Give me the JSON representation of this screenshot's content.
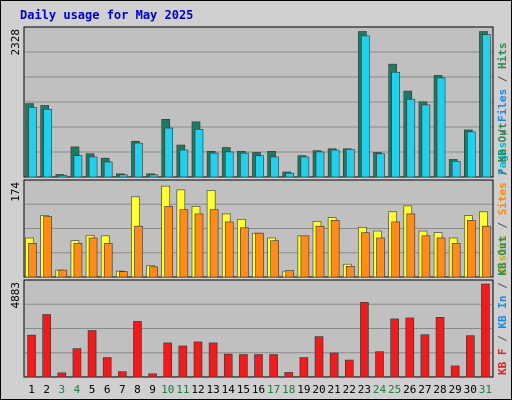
{
  "chart_data": {
    "type": "bar",
    "title": "Daily usage for May 2025",
    "categories": [
      "1",
      "2",
      "3",
      "4",
      "5",
      "6",
      "7",
      "8",
      "9",
      "10",
      "11",
      "12",
      "13",
      "14",
      "15",
      "16",
      "17",
      "18",
      "19",
      "20",
      "21",
      "22",
      "23",
      "24",
      "25",
      "26",
      "27",
      "28",
      "29",
      "30",
      "31"
    ],
    "weekend_days": [
      3,
      4,
      10,
      11,
      17,
      18,
      24,
      25,
      31
    ],
    "colors": {
      "frame_bg": "#d0d0d0",
      "panel_bg": "#c0c0c0",
      "grid": "#8a8a8a",
      "title": "#0000cc",
      "weekday_label": "#000000",
      "weekend_label": "#1a7a3a"
    },
    "panels": [
      {
        "max_label": "2328",
        "max": 2328,
        "legend": [
          {
            "text": "Pages",
            "color": "#00b7d7"
          },
          {
            "text": " / ",
            "color": "#555555"
          },
          {
            "text": "Files",
            "color": "#1e88e5"
          },
          {
            "text": " / ",
            "color": "#555555"
          },
          {
            "text": "Hits",
            "color": "#2e8b57"
          }
        ],
        "series": [
          {
            "name": "Hits",
            "color": "#1f7a63",
            "values": [
              1170,
              1140,
              40,
              480,
              370,
              300,
              50,
              570,
              50,
              920,
              510,
              880,
              410,
              470,
              410,
              390,
              410,
              80,
              340,
              420,
              450,
              450,
              2320,
              390,
              1800,
              1370,
              1200,
              1620,
              280,
              750,
              2320
            ]
          },
          {
            "name": "Pages",
            "color": "#22d0ee",
            "values": [
              1110,
              1080,
              25,
              340,
              320,
              240,
              35,
              540,
              35,
              780,
              430,
              760,
              380,
              400,
              380,
              340,
              320,
              60,
              320,
              400,
              430,
              440,
              2250,
              370,
              1670,
              1240,
              1150,
              1580,
              250,
              720,
              2270
            ]
          }
        ]
      },
      {
        "max_label": "174",
        "max": 174,
        "legend": [
          {
            "text": "Visits",
            "color": "#c8b400"
          },
          {
            "text": " / ",
            "color": "#555555"
          },
          {
            "text": "Sites",
            "color": "#ff8800"
          },
          {
            "text": " / ",
            "color": "#555555"
          },
          {
            "text": "KB Out",
            "color": "#2e8b57"
          }
        ],
        "series": [
          {
            "name": "Visits",
            "color": "#ffff33",
            "values": [
              73,
              115,
              13,
              68,
              78,
              77,
              11,
              150,
              21,
              170,
              163,
              132,
              162,
              118,
              108,
              82,
              73,
              11,
              77,
              104,
              111,
              24,
              93,
              86,
              122,
              133,
              86,
              83,
              73,
              115,
              122
            ]
          },
          {
            "name": "Sites",
            "color": "#ff8c1a",
            "values": [
              63,
              113,
              13,
              63,
              73,
              63,
              10,
              95,
              19,
              132,
              126,
              118,
              126,
              103,
              92,
              82,
              68,
              12,
              77,
              95,
              106,
              20,
              83,
              73,
              103,
              118,
              77,
              73,
              63,
              106,
              95
            ]
          }
        ]
      },
      {
        "max_label": "4883",
        "max": 4883,
        "legend": [
          {
            "text": "KB F",
            "color": "#dd2222"
          },
          {
            "text": " / ",
            "color": "#555555"
          },
          {
            "text": "KB In",
            "color": "#1e88e5"
          },
          {
            "text": " / ",
            "color": "#555555"
          },
          {
            "text": "KB Out",
            "color": "#2e8b57"
          }
        ],
        "series": [
          {
            "name": "KB F",
            "color": "#ee1c1c",
            "values": [
              2200,
              3280,
              220,
              1490,
              2440,
              1020,
              280,
              2920,
              170,
              1790,
              1630,
              1840,
              1790,
              1200,
              1180,
              1180,
              1180,
              240,
              1020,
              2120,
              1260,
              890,
              3920,
              1330,
              3050,
              3100,
              2220,
              3130,
              580,
              2170,
              4883
            ]
          }
        ]
      }
    ]
  }
}
